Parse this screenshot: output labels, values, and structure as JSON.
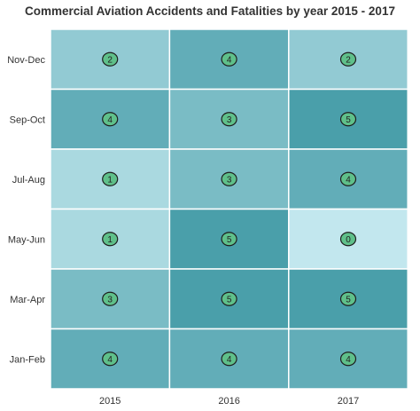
{
  "chart_data": {
    "type": "heatmap",
    "title": "Commercial Aviation Accidents and Fatalities by year 2015 - 2017",
    "x_categories": [
      "2015",
      "2016",
      "2017"
    ],
    "y_categories": [
      "Nov-Dec",
      "Sep-Oct",
      "Jul-Aug",
      "May-Jun",
      "Mar-Apr",
      "Jan-Feb"
    ],
    "values": [
      [
        2,
        4,
        2
      ],
      [
        4,
        3,
        5
      ],
      [
        1,
        3,
        4
      ],
      [
        1,
        5,
        0
      ],
      [
        3,
        5,
        5
      ],
      [
        4,
        4,
        4
      ]
    ],
    "value_range": [
      0,
      5
    ],
    "colors": {
      "low": "#c2e7ee",
      "high": "#4a9faa",
      "badge_fill": "#5fc08a",
      "badge_stroke": "#1e1e1e",
      "cell_border": "#ffffff"
    }
  }
}
